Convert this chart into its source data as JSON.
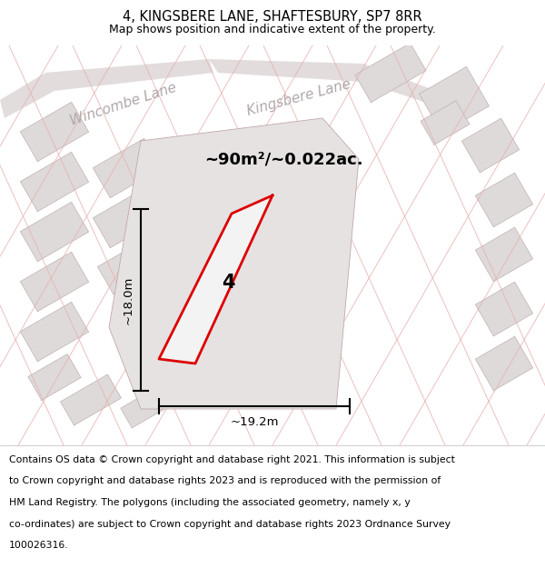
{
  "title": "4, KINGSBERE LANE, SHAFTESBURY, SP7 8RR",
  "subtitle": "Map shows position and indicative extent of the property.",
  "area_label": "~90m²/~0.022ac.",
  "width_label": "~19.2m",
  "height_label": "~18.0m",
  "plot_number": "4",
  "map_bg": "#f2f0f0",
  "plot_color": "#dd0000",
  "street_label_color": "#aaaaaa",
  "dim_color": "#111111",
  "title_fontsize": 10.5,
  "subtitle_fontsize": 9,
  "footer_fontsize": 7.8,
  "area_fontsize": 13,
  "number_fontsize": 15,
  "street_fontsize": 11,
  "footer_lines": [
    "Contains OS data © Crown copyright and database right 2021. This information is subject",
    "to Crown copyright and database rights 2023 and is reproduced with the permission of",
    "HM Land Registry. The polygons (including the associated geometry, namely x, y",
    "co-ordinates) are subject to Crown copyright and database rights 2023 Ordnance Survey",
    "100026316."
  ]
}
